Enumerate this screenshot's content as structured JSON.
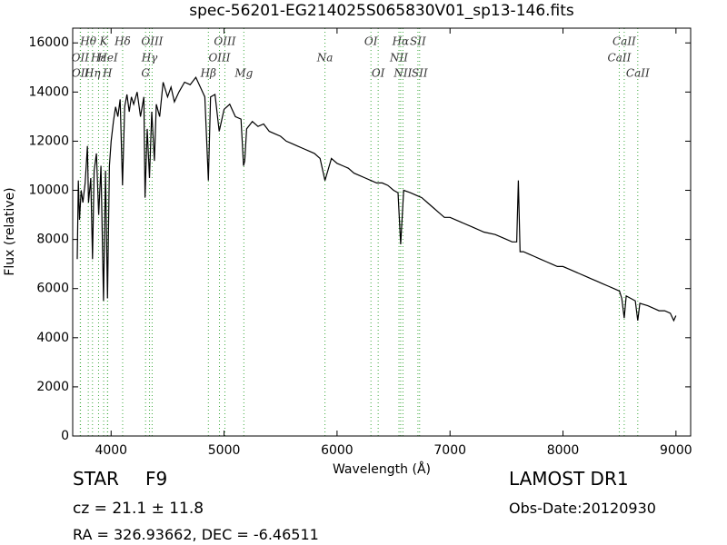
{
  "chart_data": {
    "type": "line",
    "title": "spec-56201-EG214025S065830V01_sp13-146.fits",
    "x_label": "Wavelength (Å)",
    "y_label": "Flux (relative)",
    "color": "#000000",
    "line_color": "#3aa83a",
    "xlim": [
      3660,
      9130
    ],
    "ylim": [
      0,
      16600
    ],
    "xticks": [
      4000,
      5000,
      6000,
      7000,
      8000,
      9000
    ],
    "yticks": [
      0,
      2000,
      4000,
      6000,
      8000,
      10000,
      12000,
      14000,
      16000
    ],
    "x": [
      3700,
      3710,
      3720,
      3735,
      3750,
      3770,
      3790,
      3800,
      3820,
      3835,
      3850,
      3870,
      3890,
      3910,
      3933,
      3950,
      3968,
      3985,
      4000,
      4020,
      4040,
      4060,
      4080,
      4101,
      4120,
      4140,
      4160,
      4180,
      4200,
      4230,
      4260,
      4290,
      4300,
      4320,
      4340,
      4360,
      4383,
      4400,
      4430,
      4460,
      4500,
      4530,
      4560,
      4600,
      4650,
      4700,
      4750,
      4800,
      4830,
      4861,
      4880,
      4920,
      4957,
      5000,
      5050,
      5100,
      5150,
      5172,
      5183,
      5200,
      5250,
      5300,
      5350,
      5400,
      5450,
      5500,
      5550,
      5600,
      5650,
      5700,
      5750,
      5800,
      5850,
      5893,
      5950,
      6000,
      6050,
      6100,
      6150,
      6200,
      6250,
      6300,
      6350,
      6400,
      6450,
      6500,
      6540,
      6563,
      6590,
      6650,
      6700,
      6750,
      6800,
      6850,
      6900,
      6950,
      7000,
      7100,
      7200,
      7300,
      7400,
      7500,
      7550,
      7590,
      7605,
      7620,
      7650,
      7700,
      7750,
      7800,
      7850,
      7900,
      7950,
      8000,
      8050,
      8100,
      8150,
      8200,
      8250,
      8300,
      8350,
      8400,
      8450,
      8500,
      8520,
      8542,
      8560,
      8600,
      8640,
      8662,
      8680,
      8750,
      8800,
      8850,
      8900,
      8950,
      8980,
      9000
    ],
    "values": [
      7200,
      10400,
      8800,
      10000,
      9500,
      10300,
      11800,
      9500,
      10500,
      7200,
      10800,
      11500,
      9000,
      11000,
      5500,
      10800,
      5600,
      11000,
      12000,
      12800,
      13400,
      13000,
      13700,
      10200,
      13400,
      13900,
      13200,
      13800,
      13500,
      14000,
      13000,
      13800,
      9700,
      12500,
      10500,
      13200,
      11200,
      13500,
      13000,
      14400,
      13800,
      14200,
      13600,
      14000,
      14400,
      14300,
      14600,
      14100,
      13800,
      10400,
      13800,
      13900,
      12400,
      13300,
      13500,
      13000,
      12900,
      11000,
      11200,
      12500,
      12800,
      12600,
      12700,
      12400,
      12300,
      12200,
      12000,
      11900,
      11800,
      11700,
      11600,
      11500,
      11300,
      10400,
      11300,
      11100,
      11000,
      10900,
      10700,
      10600,
      10500,
      10400,
      10300,
      10300,
      10200,
      10000,
      9900,
      7800,
      10000,
      9900,
      9800,
      9700,
      9500,
      9300,
      9100,
      8900,
      8900,
      8700,
      8500,
      8300,
      8200,
      8000,
      7900,
      7900,
      10400,
      7500,
      7500,
      7400,
      7300,
      7200,
      7100,
      7000,
      6900,
      6900,
      6800,
      6700,
      6600,
      6500,
      6400,
      6300,
      6200,
      6100,
      6000,
      5900,
      5600,
      4800,
      5700,
      5600,
      5500,
      4700,
      5400,
      5300,
      5200,
      5100,
      5100,
      5000,
      4700,
      4900
    ],
    "annotations": [
      [
        {
          "text": "Hθ",
          "x": 3798
        },
        {
          "text": "K",
          "x": 3934
        },
        {
          "text": "Hδ",
          "x": 4102
        },
        {
          "text": "OIII",
          "x": 4363
        },
        {
          "text": "OIII",
          "x": 5007
        },
        {
          "text": "OI",
          "x": 6300
        },
        {
          "text": "Hα",
          "x": 6563
        },
        {
          "text": "SII",
          "x": 6716
        },
        {
          "text": "CaII",
          "x": 8542
        }
      ],
      [
        {
          "text": "OII",
          "x": 3727
        },
        {
          "text": "Hε",
          "x": 3889
        },
        {
          "text": "HeI",
          "x": 3970
        },
        {
          "text": "Hγ",
          "x": 4340
        },
        {
          "text": "OIII",
          "x": 4959
        },
        {
          "text": "Na",
          "x": 5893
        },
        {
          "text": "NII",
          "x": 6548
        },
        {
          "text": "CaII",
          "x": 8498
        }
      ],
      [
        {
          "text": "OII",
          "x": 3729
        },
        {
          "text": "Hη",
          "x": 3835
        },
        {
          "text": "H",
          "x": 3968
        },
        {
          "text": "G",
          "x": 4305
        },
        {
          "text": "Hβ",
          "x": 4861
        },
        {
          "text": "Mg",
          "x": 5175
        },
        {
          "text": "OI",
          "x": 6364
        },
        {
          "text": "NII",
          "x": 6583
        },
        {
          "text": "SII",
          "x": 6731
        },
        {
          "text": "CaII",
          "x": 8662
        }
      ]
    ],
    "info": {
      "class": "STAR",
      "subclass": "F9",
      "survey": "LAMOST DR1",
      "cz": "cz = 21.1 ± 11.8",
      "obs_date": "Obs-Date:20120930",
      "coords": "RA = 326.93662, DEC = -6.46511"
    }
  }
}
